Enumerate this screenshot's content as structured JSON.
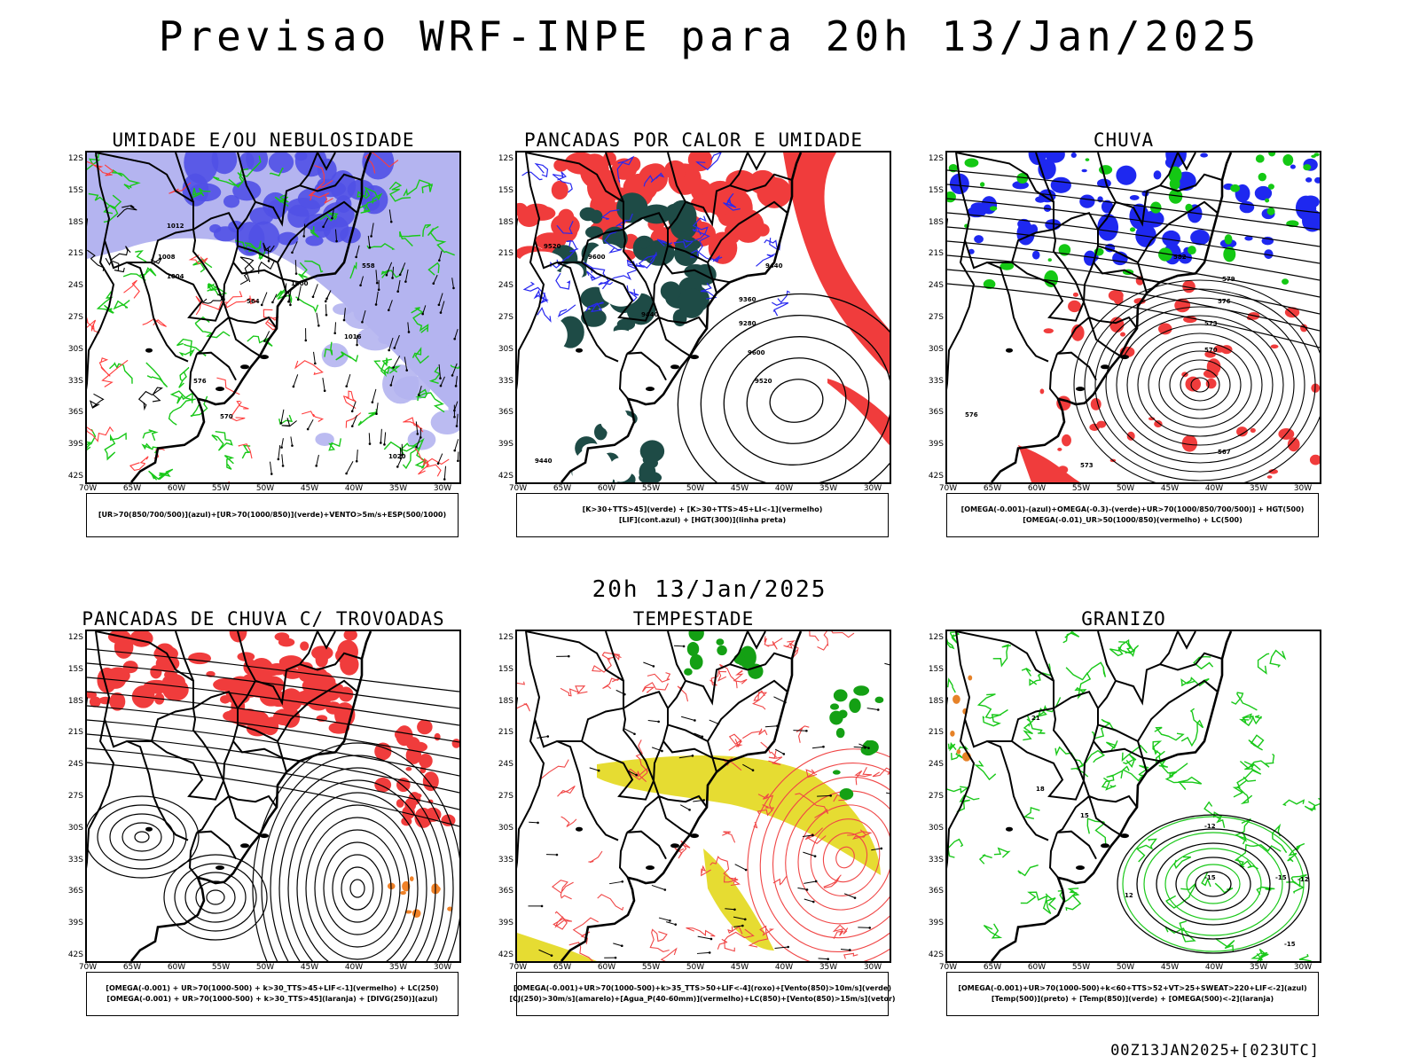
{
  "title": "Previsao WRF-INPE  para 20h 13/Jan/2025",
  "mid_title": "20h 13/Jan/2025",
  "footer": "00Z13JAN2025+[023UTC]",
  "lat_labels": [
    "12S",
    "15S",
    "18S",
    "21S",
    "24S",
    "27S",
    "30S",
    "33S",
    "36S",
    "39S",
    "42S"
  ],
  "lon_labels": [
    "70W",
    "65W",
    "60W",
    "55W",
    "50W",
    "45W",
    "40W",
    "35W",
    "30W"
  ],
  "panels": [
    {
      "title": "UMIDADE E/OU NEBULOSIDADE",
      "legend": [
        "[UR>70(850/700/500)](azul)+[UR>70(1000/850)](verde)+VENTO>5m/s+ESP(500/1000)"
      ],
      "colors": {
        "blue_light": "#b4b4f0",
        "blue_dark": "#5050e6",
        "green": "#19c819",
        "red": "#ff3c3c"
      },
      "contour_labels": [
        "1012",
        "1008",
        "1004",
        "1000",
        "576",
        "570",
        "564",
        "558",
        "1016",
        "1020"
      ]
    },
    {
      "title": "PANCADAS POR CALOR E UMIDADE",
      "legend": [
        "[K>30+TTS>45](verde) + [K>30+TTS>45+LI<-1](vermelho)",
        "[LIF](cont.azul) + [HGT(300)](linha preta)"
      ],
      "colors": {
        "red": "#f03c3c",
        "dark_green": "#1e4b46",
        "blue": "#2828f0"
      },
      "contour_labels": [
        "9600",
        "9520",
        "9440",
        "9360",
        "9280",
        "9600",
        "9520",
        "9440",
        "9440"
      ]
    },
    {
      "title": "CHUVA",
      "legend": [
        "[OMEGA(-0.001)-(azul)+OMEGA(-0.3)-(verde)+UR>70(1000/850/700/500)] + HGT(500)",
        "[OMEGA(-0.01)_UR>50(1000/850)(vermelho) + LC(500)"
      ],
      "colors": {
        "blue": "#1e28f0",
        "green": "#14c814",
        "red": "#f03c3c"
      },
      "contour_labels": [
        "579",
        "576",
        "573",
        "570",
        "567",
        "582",
        "576",
        "573"
      ]
    },
    {
      "title": "PANCADAS DE CHUVA C/ TROVOADAS",
      "legend": [
        "[OMEGA(-0.001) + UR>70(1000-500) + k>30_TTS>45+LIF<-1](vermelho) + LC(250)",
        "[OMEGA(-0.001) + UR>70(1000-500) + k>30_TTS>45](laranja) + [DIVG(250)](azul)"
      ],
      "colors": {
        "red": "#f03c3c",
        "orange": "#f08228",
        "blue": "#2828f0"
      },
      "contour_labels": []
    },
    {
      "title": "TEMPESTADE",
      "legend": [
        "[OMEGA(-0.001)+UR>70(1000-500)+k>35_TTS>50+LIF<-4](roxo)+[Vento(850)>10m/s](verde)",
        "[CJ(250)>30m/s](amarelo)+[Agua_P(40-60mm)](vermelho)+LC(850)+[Vento(850)>15m/s](vetor)"
      ],
      "colors": {
        "yellow": "#e6dc32",
        "green": "#14a014",
        "red": "#f04646"
      },
      "contour_labels": []
    },
    {
      "title": "GRANIZO",
      "legend": [
        "[OMEGA(-0.001)+UR>70(1000-500)+k<60+TTS>52+VT>25+SWEAT>220+LIF<-2](azul)",
        "[Temp(500)](preto) + [Temp(850)](verde) + [OMEGA(500)<-2](laranja)"
      ],
      "colors": {
        "green": "#19c819",
        "orange": "#e68228",
        "black": "#000000"
      },
      "contour_labels": [
        "-12",
        "-15",
        "-15",
        "-15",
        "-12",
        "21",
        "18",
        "15",
        "12"
      ]
    }
  ]
}
